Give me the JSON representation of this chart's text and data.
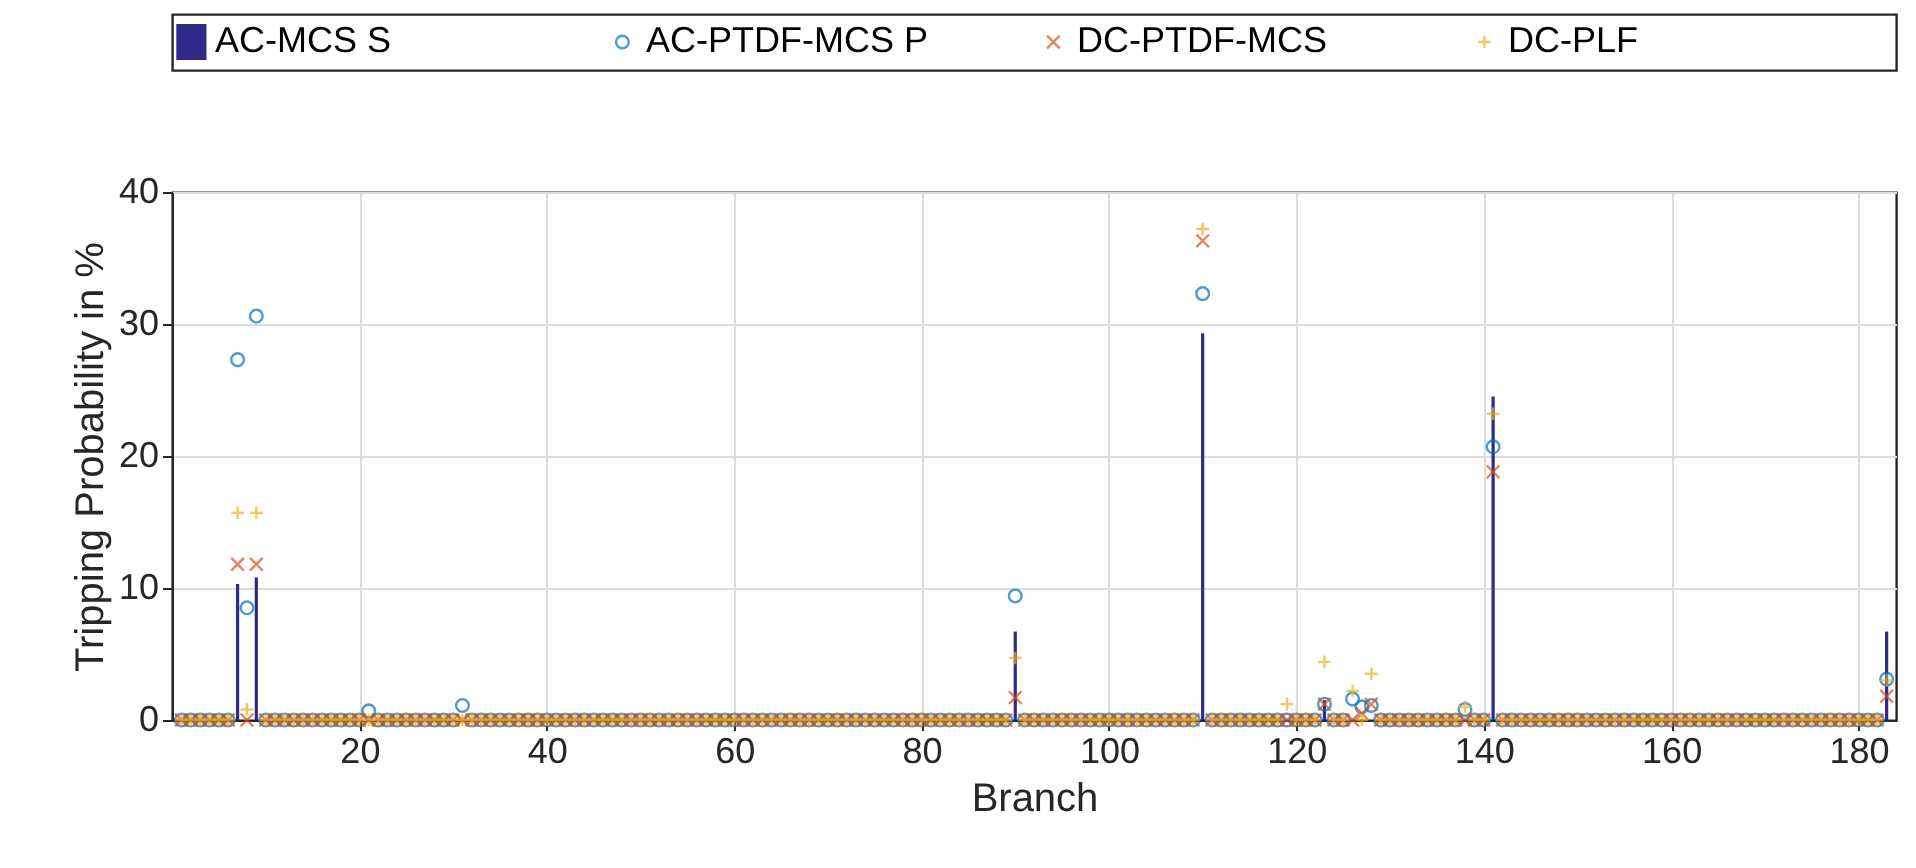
{
  "chart_data": {
    "type": "scatter",
    "xlabel": "Branch",
    "ylabel": "Tripping Probability in %",
    "xlim": [
      0,
      184
    ],
    "ylim": [
      0,
      40
    ],
    "xticks": [
      20,
      40,
      60,
      80,
      100,
      120,
      140,
      160,
      180
    ],
    "yticks": [
      0,
      10,
      20,
      30,
      40
    ],
    "grid": true,
    "legend": "top",
    "x": [
      1,
      2,
      3,
      4,
      5,
      6,
      7,
      8,
      9,
      10,
      11,
      12,
      13,
      14,
      15,
      16,
      17,
      18,
      19,
      20,
      21,
      22,
      23,
      24,
      25,
      26,
      27,
      28,
      29,
      30,
      31,
      32,
      33,
      34,
      35,
      36,
      37,
      38,
      39,
      40,
      41,
      42,
      43,
      44,
      45,
      46,
      47,
      48,
      49,
      50,
      51,
      52,
      53,
      54,
      55,
      56,
      57,
      58,
      59,
      60,
      61,
      62,
      63,
      64,
      65,
      66,
      67,
      68,
      69,
      70,
      71,
      72,
      73,
      74,
      75,
      76,
      77,
      78,
      79,
      80,
      81,
      82,
      83,
      84,
      85,
      86,
      87,
      88,
      89,
      90,
      91,
      92,
      93,
      94,
      95,
      96,
      97,
      98,
      99,
      100,
      101,
      102,
      103,
      104,
      105,
      106,
      107,
      108,
      109,
      110,
      111,
      112,
      113,
      114,
      115,
      116,
      117,
      118,
      119,
      120,
      121,
      122,
      123,
      124,
      125,
      126,
      127,
      128,
      129,
      130,
      131,
      132,
      133,
      134,
      135,
      136,
      137,
      138,
      139,
      140,
      141,
      142,
      143,
      144,
      145,
      146,
      147,
      148,
      149,
      150,
      151,
      152,
      153,
      154,
      155,
      156,
      157,
      158,
      159,
      160,
      161,
      162,
      163,
      164,
      165,
      166,
      167,
      168,
      169,
      170,
      171,
      172,
      173,
      174,
      175,
      176,
      177,
      178,
      179,
      180,
      181,
      182,
      183
    ],
    "series": [
      {
        "name": "AC-MCS S",
        "type": "bar",
        "color": "#2e2a8c",
        "values": [
          0,
          0,
          0,
          0,
          0,
          0,
          10.3,
          0,
          10.8,
          0,
          0,
          0,
          0,
          0,
          0,
          0,
          0,
          0,
          0,
          0,
          0,
          0,
          0,
          0,
          0,
          0,
          0,
          0,
          0,
          0,
          0,
          0,
          0,
          0,
          0,
          0,
          0,
          0,
          0,
          0,
          0,
          0,
          0,
          0,
          0,
          0,
          0,
          0,
          0,
          0,
          0,
          0,
          0,
          0,
          0,
          0,
          0,
          0,
          0,
          0,
          0,
          0,
          0,
          0,
          0,
          0,
          0,
          0,
          0,
          0,
          0,
          0,
          0,
          0,
          0,
          0,
          0,
          0,
          0,
          0,
          0,
          0,
          0,
          0,
          0,
          0,
          0,
          0,
          0,
          6.7,
          0,
          0,
          0,
          0,
          0,
          0,
          0,
          0,
          0,
          0,
          0,
          0,
          0,
          0,
          0,
          0,
          0,
          0,
          0,
          29.3,
          0,
          0,
          0,
          0,
          0,
          0,
          0,
          0,
          0,
          0,
          0,
          0,
          1.5,
          0,
          0,
          0,
          0,
          0,
          0,
          0,
          0,
          0,
          0,
          0,
          0,
          0,
          0,
          0,
          0,
          0,
          24.5,
          0,
          0,
          0,
          0,
          0,
          0,
          0,
          0,
          0,
          0,
          0,
          0,
          0,
          0,
          0,
          0,
          0,
          0,
          0,
          0,
          0,
          0,
          0,
          0,
          0,
          0,
          0,
          0,
          0,
          0,
          0,
          0,
          0,
          0,
          0,
          0,
          0,
          0,
          0,
          0,
          0,
          6.7
        ]
      },
      {
        "name": "AC-PTDF-MCS P",
        "marker": "circle",
        "color": "#0072bd",
        "values": [
          0,
          0,
          0,
          0,
          0,
          0,
          27.3,
          8.5,
          30.6,
          0,
          0,
          0,
          0,
          0,
          0,
          0,
          0,
          0,
          0,
          0,
          0.7,
          0,
          0,
          0,
          0,
          0,
          0,
          0,
          0,
          0,
          1.1,
          0,
          0,
          0,
          0,
          0,
          0,
          0,
          0,
          0,
          0,
          0,
          0,
          0,
          0,
          0,
          0,
          0,
          0,
          0,
          0,
          0,
          0,
          0,
          0,
          0,
          0,
          0,
          0,
          0,
          0,
          0,
          0,
          0,
          0,
          0,
          0,
          0,
          0,
          0,
          0,
          0,
          0,
          0,
          0,
          0,
          0,
          0,
          0,
          0,
          0,
          0,
          0,
          0,
          0,
          0,
          0,
          0,
          0,
          9.4,
          0,
          0,
          0,
          0,
          0,
          0,
          0,
          0,
          0,
          0,
          0,
          0,
          0,
          0,
          0,
          0,
          0,
          0,
          0,
          32.3,
          0,
          0,
          0,
          0,
          0,
          0,
          0,
          0,
          0,
          0,
          0,
          0,
          1.2,
          0,
          0,
          1.6,
          1.0,
          1.1,
          0,
          0,
          0,
          0,
          0,
          0,
          0,
          0,
          0,
          0.8,
          0,
          0,
          20.7,
          0,
          0,
          0,
          0,
          0,
          0,
          0,
          0,
          0,
          0,
          0,
          0,
          0,
          0,
          0,
          0,
          0,
          0,
          0,
          0,
          0,
          0,
          0,
          0,
          0,
          0,
          0,
          0,
          0,
          0,
          0,
          0,
          0,
          0,
          0,
          0,
          0,
          0,
          0,
          0,
          0,
          3.1
        ]
      },
      {
        "name": "DC-PTDF-MCS",
        "marker": "cross",
        "color": "#d95319",
        "values": [
          0,
          0,
          0,
          0,
          0,
          0,
          11.8,
          0,
          11.8,
          0,
          0,
          0,
          0,
          0,
          0,
          0,
          0,
          0,
          0,
          0,
          0,
          0,
          0,
          0,
          0,
          0,
          0,
          0,
          0,
          0,
          0,
          0,
          0,
          0,
          0,
          0,
          0,
          0,
          0,
          0,
          0,
          0,
          0,
          0,
          0,
          0,
          0,
          0,
          0,
          0,
          0,
          0,
          0,
          0,
          0,
          0,
          0,
          0,
          0,
          0,
          0,
          0,
          0,
          0,
          0,
          0,
          0,
          0,
          0,
          0,
          0,
          0,
          0,
          0,
          0,
          0,
          0,
          0,
          0,
          0,
          0,
          0,
          0,
          0,
          0,
          0,
          0,
          0,
          0,
          1.7,
          0,
          0,
          0,
          0,
          0,
          0,
          0,
          0,
          0,
          0,
          0,
          0,
          0,
          0,
          0,
          0,
          0,
          0,
          0,
          36.3,
          0,
          0,
          0,
          0,
          0,
          0,
          0,
          0,
          0,
          0,
          0,
          0,
          1.2,
          0,
          0,
          0,
          0.5,
          1.2,
          0,
          0,
          0,
          0,
          0,
          0,
          0,
          0,
          0,
          0,
          0,
          0,
          18.8,
          0,
          0,
          0,
          0,
          0,
          0,
          0,
          0,
          0,
          0,
          0,
          0,
          0,
          0,
          0,
          0,
          0,
          0,
          0,
          0,
          0,
          0,
          0,
          0,
          0,
          0,
          0,
          0,
          0,
          0,
          0,
          0,
          0,
          0,
          0,
          0,
          0,
          0,
          0,
          0,
          0,
          1.8
        ]
      },
      {
        "name": "DC-PLF",
        "marker": "plus",
        "color": "#edb120",
        "values": [
          0,
          0,
          0,
          0,
          0,
          0,
          15.7,
          0.8,
          15.7,
          0,
          0,
          0,
          0,
          0,
          0,
          0,
          0,
          0,
          0,
          0,
          0,
          0,
          0,
          0,
          0,
          0,
          0,
          0,
          0,
          0,
          0,
          0,
          0,
          0,
          0,
          0,
          0,
          0,
          0,
          0,
          0,
          0,
          0,
          0,
          0,
          0,
          0,
          0,
          0,
          0,
          0,
          0,
          0,
          0,
          0,
          0,
          0,
          0,
          0,
          0,
          0,
          0,
          0,
          0,
          0,
          0,
          0,
          0,
          0,
          0,
          0,
          0,
          0,
          0,
          0,
          0,
          0,
          0,
          0,
          0,
          0,
          0,
          0,
          0,
          0,
          0,
          0,
          0,
          0,
          4.7,
          0,
          0,
          0,
          0,
          0,
          0,
          0,
          0,
          0,
          0,
          0,
          0,
          0,
          0,
          0,
          0,
          0,
          0,
          0,
          37.2,
          0,
          0,
          0,
          0,
          0,
          0,
          0,
          0,
          1.2,
          0,
          0,
          0,
          4.4,
          0,
          0,
          2.2,
          0,
          3.5,
          0,
          0,
          0,
          0,
          0,
          0,
          0,
          0,
          0,
          1.0,
          0,
          0,
          23.2,
          0,
          0,
          0,
          0,
          0,
          0,
          0,
          0,
          0,
          0,
          0,
          0,
          0,
          0,
          0,
          0,
          0,
          0,
          0,
          0,
          0,
          0,
          0,
          0,
          0,
          0,
          0,
          0,
          0,
          0,
          0,
          0,
          0,
          0,
          0,
          0,
          0,
          0,
          0,
          0,
          0,
          3.0
        ]
      }
    ]
  }
}
